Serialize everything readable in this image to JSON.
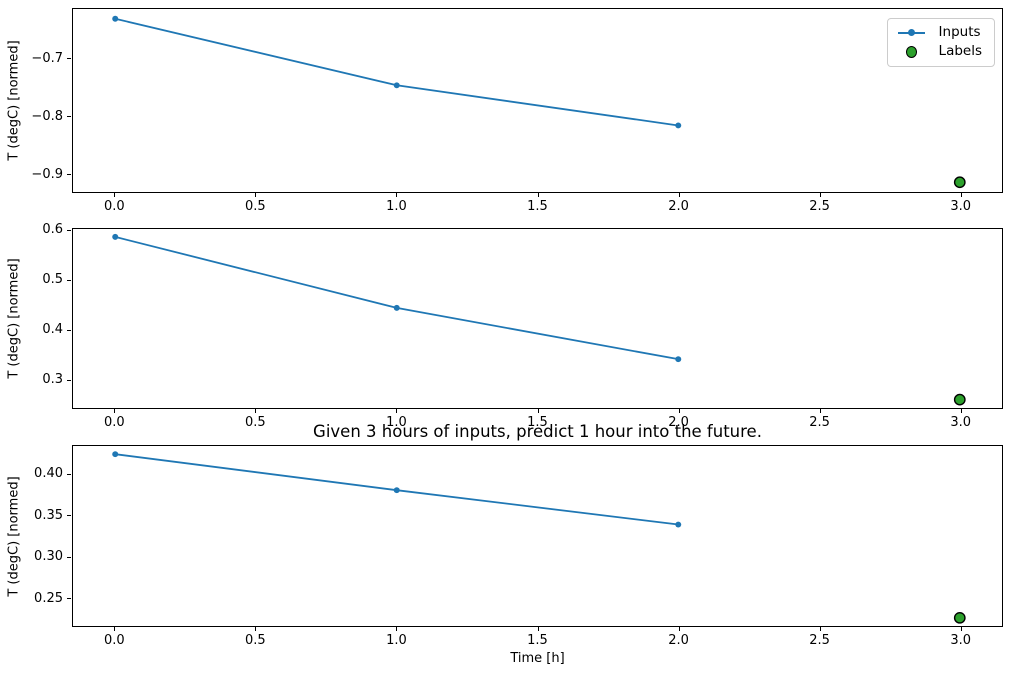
{
  "figure": {
    "title": "Given 3 hours of inputs, predict 1 hour into the future.",
    "xlabel": "Time [h]",
    "ylabel": "T (degC) [normed]",
    "background": "#ffffff",
    "colors": {
      "inputs": "#1f77b4",
      "labels_fill": "#2ca02c",
      "labels_edge": "#000000",
      "spine": "#000000",
      "text": "#000000",
      "legend_border": "#cccccc"
    },
    "legend": {
      "position": "upper-right-of-subplot-1",
      "items": [
        {
          "label": "Inputs",
          "marker": "line-dot-icon"
        },
        {
          "label": "Labels",
          "marker": "circle-icon"
        }
      ]
    }
  },
  "chart_data": [
    {
      "type": "line",
      "subplot": 1,
      "ylabel": "T (degC) [normed]",
      "grid": false,
      "xlim": [
        -0.15,
        3.15
      ],
      "ylim": [
        -0.932,
        -0.613
      ],
      "xticks": [
        0,
        0.5,
        1,
        1.5,
        2,
        2.5,
        3
      ],
      "xtick_labels": [
        "0.0",
        "0.5",
        "1.0",
        "1.5",
        "2.0",
        "2.5",
        "3.0"
      ],
      "yticks": [
        -0.7,
        -0.8,
        -0.9
      ],
      "ytick_labels": [
        "−0.7",
        "−0.8",
        "−0.9"
      ],
      "series": [
        {
          "name": "Inputs",
          "type": "line",
          "x": [
            0,
            1,
            2
          ],
          "y": [
            -0.63,
            -0.746,
            -0.816
          ]
        },
        {
          "name": "Labels",
          "type": "scatter",
          "x": [
            3
          ],
          "y": [
            -0.915
          ]
        }
      ]
    },
    {
      "type": "line",
      "subplot": 2,
      "ylabel": "T (degC) [normed]",
      "grid": false,
      "xlim": [
        -0.15,
        3.15
      ],
      "ylim": [
        0.241,
        0.604
      ],
      "xticks": [
        0,
        0.5,
        1,
        1.5,
        2,
        2.5,
        3
      ],
      "xtick_labels": [
        "0.0",
        "0.5",
        "1.0",
        "1.5",
        "2.0",
        "2.5",
        "3.0"
      ],
      "yticks": [
        0.6,
        0.5,
        0.4,
        0.3
      ],
      "ytick_labels": [
        "0.6",
        "0.5",
        "0.4",
        "0.3"
      ],
      "series": [
        {
          "name": "Inputs",
          "type": "line",
          "x": [
            0,
            1,
            2
          ],
          "y": [
            0.588,
            0.444,
            0.34
          ]
        },
        {
          "name": "Labels",
          "type": "scatter",
          "x": [
            3
          ],
          "y": [
            0.258
          ]
        }
      ]
    },
    {
      "type": "line",
      "subplot": 3,
      "ylabel": "T (degC) [normed]",
      "xlabel": "Time [h]",
      "title": "Given 3 hours of inputs, predict 1 hour into the future.",
      "grid": false,
      "xlim": [
        -0.15,
        3.15
      ],
      "ylim": [
        0.215,
        0.435
      ],
      "xticks": [
        0,
        0.5,
        1,
        1.5,
        2,
        2.5,
        3
      ],
      "xtick_labels": [
        "0.0",
        "0.5",
        "1.0",
        "1.5",
        "2.0",
        "2.5",
        "3.0"
      ],
      "yticks": [
        0.4,
        0.35,
        0.3,
        0.25
      ],
      "ytick_labels": [
        "0.40",
        "0.35",
        "0.30",
        "0.25"
      ],
      "series": [
        {
          "name": "Inputs",
          "type": "line",
          "x": [
            0,
            1,
            2
          ],
          "y": [
            0.425,
            0.381,
            0.339
          ]
        },
        {
          "name": "Labels",
          "type": "scatter",
          "x": [
            3
          ],
          "y": [
            0.225
          ]
        }
      ]
    }
  ]
}
